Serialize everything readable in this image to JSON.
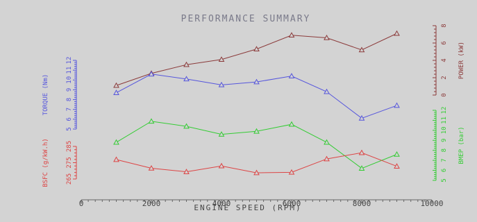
{
  "chart_data": {
    "type": "line",
    "title": "PERFORMANCE SUMMARY",
    "xlabel": "ENGINE SPEED (RPM)",
    "x": [
      1000,
      2000,
      3000,
      4000,
      5000,
      6000,
      7000,
      8000,
      9000
    ],
    "xlim": [
      0,
      10000
    ],
    "xticks": [
      "0",
      "2000",
      "4000",
      "6000",
      "8000",
      "10000"
    ],
    "grid": false,
    "series": [
      {
        "name": "POWER (kW)",
        "color": "#8b3a3a",
        "marker": "triangle",
        "axis_side": "right",
        "ylim": [
          0,
          8
        ],
        "ticks": [
          "0",
          "2",
          "4",
          "6",
          "8"
        ],
        "values": [
          1.1,
          2.5,
          3.5,
          4.1,
          5.3,
          6.9,
          6.6,
          5.2,
          7.1
        ]
      },
      {
        "name": "TORQUE (Nm)",
        "color": "#5555dd",
        "marker": "triangle",
        "axis_side": "left",
        "ylim": [
          5,
          12
        ],
        "ticks": [
          "5",
          "6",
          "7",
          "8",
          "9",
          "10",
          "11",
          "12"
        ],
        "values": [
          8.7,
          10.6,
          10.1,
          9.5,
          9.8,
          10.4,
          8.8,
          6.1,
          7.4
        ]
      },
      {
        "name": "BMEP (bar)",
        "color": "#33cc33",
        "marker": "triangle",
        "axis_side": "right",
        "ylim": [
          5,
          12
        ],
        "ticks": [
          "5",
          "6",
          "7",
          "8",
          "9",
          "10",
          "11",
          "12"
        ],
        "values": [
          8.8,
          10.9,
          10.4,
          9.6,
          9.9,
          10.6,
          8.8,
          6.2,
          7.6
        ]
      },
      {
        "name": "BSFC (g/kW.h)",
        "color": "#dd4444",
        "marker": "triangle",
        "axis_side": "left",
        "ylim": [
          265,
          285
        ],
        "ticks": [
          "265",
          "275",
          "285"
        ],
        "values": [
          276.9,
          271.6,
          269.4,
          273.0,
          268.8,
          269.1,
          277.3,
          281.1,
          272.8
        ]
      }
    ]
  }
}
